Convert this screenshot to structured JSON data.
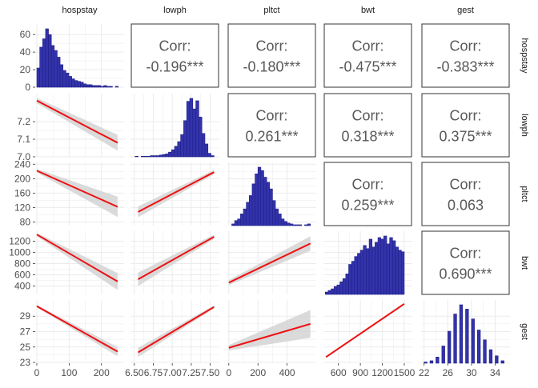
{
  "chart_data": {
    "type": "scatter-matrix",
    "variables": [
      "hospstay",
      "lowph",
      "pltct",
      "bwt",
      "gest"
    ],
    "colors": {
      "bar_fill": "#3333aa",
      "bar_stroke": "#1f1f8a",
      "line": "#ee1111",
      "ribbon": "#d3d3d3",
      "grid": "#ebebeb",
      "label": "#4d4d4d",
      "corr_text": "#595959"
    },
    "axes": [
      {
        "name": "hospstay",
        "lim": [
          -5,
          270
        ],
        "ticks": [
          0,
          100,
          200
        ],
        "tick_labels": [
          "0",
          "100",
          "200"
        ]
      },
      {
        "name": "lowph",
        "lim": [
          6.45,
          7.62
        ],
        "ticks": [
          6.5,
          6.75,
          7.0,
          7.25,
          7.5
        ],
        "tick_labels": [
          "6.50",
          "6.75",
          "7.00",
          "7.25",
          "7.50"
        ]
      },
      {
        "name": "pltct",
        "lim": [
          -10,
          600
        ],
        "ticks": [
          0,
          200,
          400
        ],
        "tick_labels": [
          "0",
          "200",
          "400"
        ]
      },
      {
        "name": "bwt",
        "lim": [
          395,
          1610
        ],
        "ticks": [
          600,
          900,
          1200,
          1500
        ],
        "tick_labels": [
          "600",
          "900",
          "1200",
          "1500"
        ]
      },
      {
        "name": "gest",
        "lim": [
          21.5,
          36.5
        ],
        "ticks": [
          22,
          26,
          30,
          34
        ],
        "tick_labels": [
          "22",
          "26",
          "30",
          "34"
        ]
      }
    ],
    "row_axes": [
      {
        "name": "hospstay",
        "lim": [
          0,
          72
        ],
        "ticks": [
          0,
          20,
          40,
          60
        ],
        "tick_labels": [
          "0",
          "20",
          "40",
          "60"
        ]
      },
      {
        "name": "lowph",
        "lim": [
          7.0,
          7.36
        ],
        "ticks": [
          7.0,
          7.1,
          7.2
        ],
        "tick_labels": [
          "7.0",
          "7.1",
          "7.2"
        ]
      },
      {
        "name": "pltct",
        "lim": [
          70,
          245
        ],
        "ticks": [
          80,
          120,
          160,
          200,
          240
        ],
        "tick_labels": [
          "80",
          "120",
          "160",
          "200",
          "240"
        ]
      },
      {
        "name": "bwt",
        "lim": [
          250,
          1380
        ],
        "ticks": [
          400,
          600,
          800,
          1000,
          1200
        ],
        "tick_labels": [
          "400",
          "600",
          "800",
          "1000",
          "1200"
        ]
      },
      {
        "name": "gest",
        "lim": [
          22.9,
          31.1
        ],
        "ticks": [
          23,
          25,
          27,
          29
        ],
        "tick_labels": [
          "23",
          "25",
          "27",
          "29"
        ]
      }
    ],
    "correlations": [
      {
        "row": 0,
        "col": 1,
        "label": "Corr:",
        "value": "-0.196***"
      },
      {
        "row": 0,
        "col": 2,
        "label": "Corr:",
        "value": "-0.180***"
      },
      {
        "row": 0,
        "col": 3,
        "label": "Corr:",
        "value": "-0.475***"
      },
      {
        "row": 0,
        "col": 4,
        "label": "Corr:",
        "value": "-0.383***"
      },
      {
        "row": 1,
        "col": 2,
        "label": "Corr:",
        "value": "0.261***"
      },
      {
        "row": 1,
        "col": 3,
        "label": "Corr:",
        "value": "0.318***"
      },
      {
        "row": 1,
        "col": 4,
        "label": "Corr:",
        "value": "0.375***"
      },
      {
        "row": 2,
        "col": 3,
        "label": "Corr:",
        "value": "0.259***"
      },
      {
        "row": 2,
        "col": 4,
        "label": "Corr:",
        "value": "0.063"
      },
      {
        "row": 3,
        "col": 4,
        "label": "Corr:",
        "value": "0.690***"
      }
    ],
    "histograms": [
      {
        "var": "hospstay",
        "bins": [
          0,
          9,
          18,
          27,
          36,
          45,
          54,
          63,
          72,
          81,
          90,
          99,
          108,
          117,
          126,
          135,
          144,
          153,
          162,
          171,
          180,
          189,
          198,
          207,
          216,
          225,
          234,
          243,
          252
        ],
        "counts": [
          23,
          48,
          58,
          70,
          63,
          50,
          44,
          36,
          27,
          20,
          17,
          13,
          10,
          8,
          7,
          6,
          4,
          3,
          3,
          2,
          2,
          2,
          1,
          2,
          1,
          1,
          0,
          1
        ]
      },
      {
        "var": "lowph",
        "bins": [
          6.51,
          6.55,
          6.59,
          6.63,
          6.67,
          6.71,
          6.75,
          6.79,
          6.83,
          6.87,
          6.91,
          6.95,
          6.99,
          7.03,
          7.07,
          7.11,
          7.15,
          7.19,
          7.23,
          7.27,
          7.31,
          7.35,
          7.39,
          7.43,
          7.47,
          7.51,
          7.55
        ],
        "counts": [
          1,
          0,
          1,
          1,
          1,
          2,
          2,
          2,
          3,
          4,
          5,
          8,
          12,
          18,
          26,
          38,
          62,
          95,
          100,
          82,
          96,
          68,
          40,
          22,
          6,
          2
        ]
      },
      {
        "var": "pltct",
        "bins": [
          20,
          40,
          60,
          80,
          100,
          120,
          140,
          160,
          180,
          200,
          220,
          240,
          260,
          280,
          300,
          320,
          340,
          360,
          380,
          400,
          420,
          440,
          460,
          480,
          500,
          520,
          540,
          560
        ],
        "counts": [
          2,
          6,
          8,
          14,
          20,
          28,
          36,
          50,
          62,
          70,
          66,
          58,
          52,
          44,
          30,
          20,
          14,
          8,
          5,
          3,
          2,
          1,
          1,
          1,
          0,
          1,
          2
        ]
      },
      {
        "var": "bwt",
        "bins": [
          420,
          460,
          500,
          540,
          580,
          620,
          660,
          700,
          740,
          780,
          820,
          860,
          900,
          940,
          980,
          1020,
          1060,
          1100,
          1140,
          1180,
          1220,
          1260,
          1300,
          1340,
          1380,
          1420,
          1460,
          1500
        ],
        "counts": [
          3,
          5,
          7,
          10,
          12,
          16,
          20,
          26,
          38,
          42,
          48,
          52,
          56,
          62,
          58,
          70,
          60,
          66,
          72,
          70,
          74,
          64,
          72,
          68,
          60,
          56,
          54
        ]
      },
      {
        "var": "gest",
        "bins": [
          22,
          22.5,
          23,
          23.5,
          24,
          24.5,
          25,
          25.5,
          26,
          26.5,
          27,
          27.5,
          28,
          28.5,
          29,
          29.5,
          30,
          30.5,
          31,
          31.5,
          32,
          32.5,
          33,
          33.5,
          34,
          34.5,
          35,
          35.5,
          36
        ],
        "counts": [
          2,
          0,
          4,
          0,
          10,
          0,
          28,
          0,
          52,
          0,
          80,
          0,
          95,
          0,
          88,
          0,
          72,
          0,
          54,
          0,
          38,
          0,
          22,
          0,
          12,
          0,
          4,
          0
        ]
      }
    ],
    "fits": [
      {
        "row": 1,
        "col": 0,
        "x": [
          0,
          250
        ],
        "y": [
          7.32,
          7.08
        ],
        "se": [
          0.015,
          0.045
        ]
      },
      {
        "row": 2,
        "col": 0,
        "x": [
          0,
          250
        ],
        "y": [
          222,
          122
        ],
        "se": [
          5,
          28
        ]
      },
      {
        "row": 2,
        "col": 1,
        "x": [
          6.55,
          7.55
        ],
        "y": [
          108,
          218
        ],
        "se": [
          15,
          6
        ]
      },
      {
        "row": 3,
        "col": 0,
        "x": [
          0,
          250
        ],
        "y": [
          1320,
          480
        ],
        "se": [
          30,
          150
        ]
      },
      {
        "row": 3,
        "col": 1,
        "x": [
          6.55,
          7.55
        ],
        "y": [
          520,
          1280
        ],
        "se": [
          120,
          40
        ]
      },
      {
        "row": 3,
        "col": 2,
        "x": [
          0,
          560
        ],
        "y": [
          460,
          1160
        ],
        "se": [
          45,
          130
        ]
      },
      {
        "row": 4,
        "col": 0,
        "x": [
          0,
          250
        ],
        "y": [
          30.3,
          24.4
        ],
        "se": [
          0.15,
          0.6
        ]
      },
      {
        "row": 4,
        "col": 1,
        "x": [
          6.55,
          7.55
        ],
        "y": [
          24.3,
          30.2
        ],
        "se": [
          0.6,
          0.2
        ]
      },
      {
        "row": 4,
        "col": 2,
        "x": [
          0,
          560
        ],
        "y": [
          24.9,
          28.0
        ],
        "se": [
          0.35,
          1.8
        ]
      },
      {
        "row": 4,
        "col": 3,
        "x": [
          430,
          1500
        ],
        "y": [
          23.7,
          30.6
        ],
        "se": [
          0.12,
          0.12
        ]
      }
    ]
  }
}
